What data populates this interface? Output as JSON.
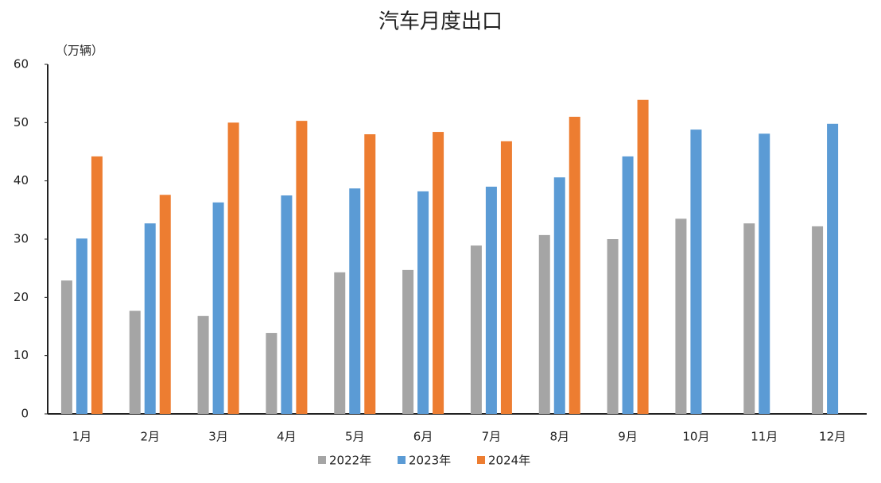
{
  "chart_data": {
    "type": "bar",
    "title": "汽车月度出口",
    "y_label": "（万辆）",
    "categories": [
      "1月",
      "2月",
      "3月",
      "4月",
      "5月",
      "6月",
      "7月",
      "8月",
      "9月",
      "10月",
      "11月",
      "12月"
    ],
    "series": [
      {
        "name": "2022年",
        "color": "#a5a5a5",
        "values": [
          22.9,
          17.7,
          16.8,
          13.9,
          24.3,
          24.7,
          28.9,
          30.7,
          30.0,
          33.5,
          32.7,
          32.2
        ]
      },
      {
        "name": "2023年",
        "color": "#5b9bd5",
        "values": [
          30.1,
          32.7,
          36.3,
          37.5,
          38.7,
          38.2,
          39.0,
          40.6,
          44.2,
          48.8,
          48.1,
          49.8
        ]
      },
      {
        "name": "2024年",
        "color": "#ed7d31",
        "values": [
          44.2,
          37.6,
          50.0,
          50.3,
          48.0,
          48.4,
          46.8,
          51.0,
          53.9,
          null,
          null,
          null
        ]
      }
    ],
    "ylim": [
      0,
      60
    ],
    "yticks": [
      0,
      10,
      20,
      30,
      40,
      50,
      60
    ],
    "grid": false,
    "legend": "bottom"
  }
}
